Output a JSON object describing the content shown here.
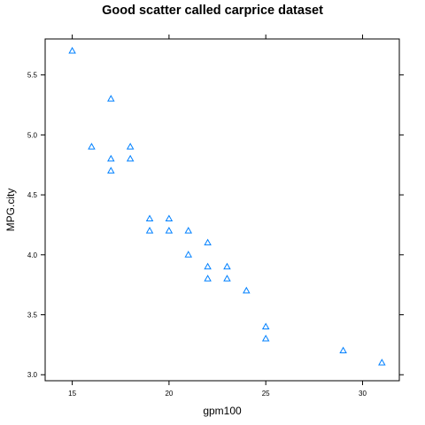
{
  "chart_data": {
    "type": "scatter",
    "title": "Good scatter called carprice dataset",
    "xlabel": "gpm100",
    "ylabel": "MPG.city",
    "xlim": [
      13.6,
      31.9
    ],
    "ylim": [
      2.95,
      5.8
    ],
    "xticks": [
      15,
      20,
      25,
      30
    ],
    "yticks": [
      3.0,
      3.5,
      4.0,
      4.5,
      5.0,
      5.5
    ],
    "ytick_labels": [
      "3.0",
      "3.5",
      "4.0",
      "4.5",
      "5.0",
      "5.5"
    ],
    "xtick_labels": [
      "15",
      "20",
      "25",
      "30"
    ],
    "marker": "open-triangle",
    "color": "#0080ff",
    "grid": false,
    "series": [
      {
        "points": [
          [
            15,
            5.7
          ],
          [
            16,
            4.9
          ],
          [
            17,
            5.3
          ],
          [
            17,
            4.8
          ],
          [
            17,
            4.7
          ],
          [
            18,
            4.9
          ],
          [
            18,
            4.8
          ],
          [
            19,
            4.3
          ],
          [
            19,
            4.2
          ],
          [
            20,
            4.3
          ],
          [
            20,
            4.2
          ],
          [
            21,
            4.2
          ],
          [
            21,
            4.0
          ],
          [
            22,
            4.1
          ],
          [
            22,
            3.9
          ],
          [
            22,
            3.8
          ],
          [
            23,
            3.9
          ],
          [
            23,
            3.8
          ],
          [
            24,
            3.7
          ],
          [
            25,
            3.4
          ],
          [
            25,
            3.3
          ],
          [
            29,
            3.2
          ],
          [
            31,
            3.1
          ]
        ]
      }
    ]
  }
}
